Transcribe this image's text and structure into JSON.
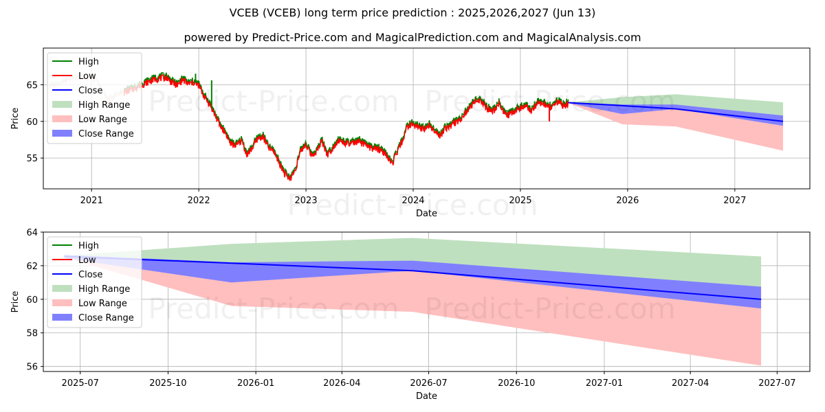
{
  "title": "VCEB (VCEB) long term price prediction : 2025,2026,2027 (Jun 13)",
  "subtitle": "powered by Predict-Price.com and MagicalPrediction.com and MagicalAnalysis.com",
  "watermark": "Predict-Price.com",
  "colors": {
    "high": "#008000",
    "low": "#ff0000",
    "close": "#0000ff",
    "high_range": "#bfe0bf",
    "low_range": "#ffbfbf",
    "close_range": "#8080ff"
  },
  "legend": [
    "High",
    "Low",
    "Close",
    "High Range",
    "Low Range",
    "Close Range"
  ],
  "chart_data": [
    {
      "type": "line",
      "name": "long-term",
      "xlabel": "Date",
      "ylabel": "Price",
      "xlim": [
        2020.55,
        2027.7
      ],
      "ylim": [
        50.8,
        70.0
      ],
      "xticks": [
        2021,
        2022,
        2023,
        2024,
        2025,
        2026,
        2027
      ],
      "xtick_labels": [
        "2021",
        "2022",
        "2023",
        "2024",
        "2025",
        "2026",
        "2027"
      ],
      "yticks": [
        55,
        60,
        65
      ],
      "ytick_labels": [
        "55",
        "60",
        "65"
      ],
      "history_dim": {
        "x": [
          2020.6,
          2020.75,
          2020.9,
          2021.05,
          2021.15,
          2021.3
        ],
        "y": [
          64.8,
          65.6,
          66.3,
          65.6,
          63.0,
          64.2
        ]
      },
      "history": {
        "x": [
          2021.3,
          2021.4,
          2021.5,
          2021.6,
          2021.7,
          2021.75,
          2021.8,
          2021.85,
          2021.9,
          2021.95,
          2022.0,
          2022.05,
          2022.1,
          2022.15,
          2022.2,
          2022.25,
          2022.3,
          2022.35,
          2022.4,
          2022.45,
          2022.5,
          2022.55,
          2022.6,
          2022.65,
          2022.7,
          2022.75,
          2022.8,
          2022.85,
          2022.9,
          2022.95,
          2023.0,
          2023.05,
          2023.1,
          2023.15,
          2023.2,
          2023.25,
          2023.3,
          2023.35,
          2023.4,
          2023.5,
          2023.6,
          2023.7,
          2023.75,
          2023.8,
          2023.85,
          2023.9,
          2023.95,
          2024.0,
          2024.05,
          2024.1,
          2024.15,
          2024.2,
          2024.25,
          2024.3,
          2024.35,
          2024.4,
          2024.45,
          2024.5,
          2024.55,
          2024.6,
          2024.65,
          2024.7,
          2024.75,
          2024.8,
          2024.85,
          2024.9,
          2024.95,
          2025.0,
          2025.05,
          2025.1,
          2025.15,
          2025.2,
          2025.25,
          2025.3,
          2025.35,
          2025.4,
          2025.45
        ],
        "y": [
          64.0,
          64.6,
          65.3,
          65.9,
          66.1,
          65.4,
          65.0,
          65.8,
          65.2,
          65.4,
          65.0,
          63.5,
          62.5,
          61.0,
          59.5,
          58.5,
          57.0,
          56.8,
          57.5,
          55.5,
          56.5,
          57.8,
          58.0,
          56.5,
          56.0,
          54.5,
          53.0,
          52.2,
          53.5,
          56.0,
          57.0,
          55.5,
          56.0,
          57.5,
          55.5,
          56.5,
          57.5,
          57.2,
          57.0,
          57.3,
          56.5,
          56.2,
          55.5,
          54.2,
          55.8,
          57.5,
          59.5,
          59.7,
          59.3,
          59.0,
          59.6,
          59.0,
          58.0,
          59.2,
          59.5,
          60.0,
          60.5,
          61.5,
          62.3,
          63.2,
          62.5,
          61.8,
          61.5,
          62.6,
          61.2,
          61.0,
          61.5,
          62.0,
          62.3,
          61.5,
          62.5,
          62.7,
          62.2,
          62.0,
          62.8,
          62.3,
          62.55
        ]
      },
      "spikes": [
        {
          "x": 2021.97,
          "top": 66.5,
          "bottom": 65.2
        },
        {
          "x": 2022.12,
          "top": 65.6,
          "bottom": 62.0
        },
        {
          "x": 2025.27,
          "top": 62.4,
          "bottom": 60.0
        }
      ],
      "forecast": {
        "x": [
          2025.45,
          2025.95,
          2026.45,
          2027.45
        ],
        "high_upper": [
          62.6,
          63.3,
          63.7,
          62.6
        ],
        "low_lower": [
          62.5,
          59.6,
          59.3,
          56.0
        ],
        "close_upper": [
          62.6,
          62.3,
          62.3,
          60.8
        ],
        "close_lower": [
          62.5,
          61.0,
          61.7,
          59.4
        ],
        "close": [
          62.55,
          62.15,
          61.7,
          60.0
        ]
      }
    },
    {
      "type": "line",
      "name": "forecast-zoom",
      "xlabel": "Date",
      "ylabel": "Price",
      "xlim": [
        2025.39,
        2027.59
      ],
      "ylim": [
        55.7,
        64.0
      ],
      "xticks": [
        2025.496,
        2025.748,
        2026.0,
        2026.247,
        2026.496,
        2026.748,
        2027.0,
        2027.247,
        2027.496
      ],
      "xtick_labels": [
        "2025-07",
        "2025-10",
        "2026-01",
        "2026-04",
        "2026-07",
        "2026-10",
        "2027-01",
        "2027-04",
        "2027-07"
      ],
      "yticks": [
        56,
        58,
        60,
        62,
        64
      ],
      "ytick_labels": [
        "56",
        "58",
        "60",
        "62",
        "64"
      ],
      "forecast": {
        "x": [
          2025.45,
          2025.93,
          2026.45,
          2027.45
        ],
        "high_upper": [
          62.6,
          63.3,
          63.65,
          62.55
        ],
        "low_lower": [
          62.5,
          59.6,
          59.25,
          56.05
        ],
        "close_upper": [
          62.65,
          62.2,
          62.3,
          60.75
        ],
        "close_lower": [
          62.45,
          61.0,
          61.7,
          59.45
        ],
        "close": [
          62.55,
          62.15,
          61.7,
          60.0
        ]
      }
    }
  ]
}
